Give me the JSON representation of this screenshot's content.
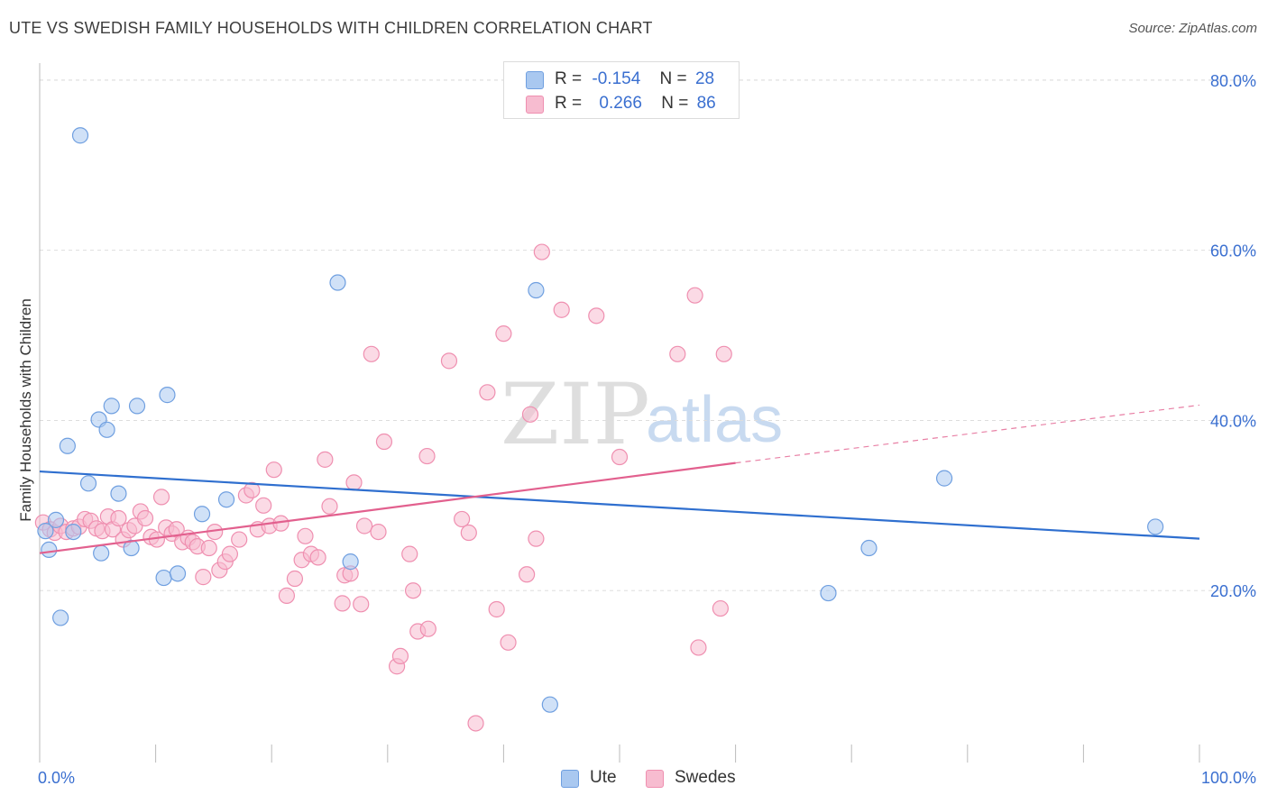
{
  "title": "UTE VS SWEDISH FAMILY HOUSEHOLDS WITH CHILDREN CORRELATION CHART",
  "source": "Source: ZipAtlas.com",
  "watermark": {
    "part1": "ZIP",
    "part2": "atlas"
  },
  "legend": {
    "rows": [
      {
        "r_label": "R =",
        "r_value": "-0.154",
        "n_label": "N =",
        "n_value": "28",
        "color": "#a9c8f0",
        "stroke": "#6f9fe0"
      },
      {
        "r_label": "R =",
        "r_value": "0.266",
        "n_label": "N =",
        "n_value": "86",
        "color": "#f7bcd0",
        "stroke": "#ef8fb0"
      }
    ]
  },
  "bottom_legend": [
    {
      "label": "Ute",
      "color": "#a9c8f0",
      "stroke": "#6f9fe0"
    },
    {
      "label": "Swedes",
      "color": "#f7bcd0",
      "stroke": "#ef8fb0"
    }
  ],
  "chart_data": {
    "type": "scatter",
    "title": "UTE VS SWEDISH FAMILY HOUSEHOLDS WITH CHILDREN CORRELATION CHART",
    "xlabel": "",
    "ylabel": "Family Households with Children",
    "xlim": [
      0,
      100
    ],
    "ylim": [
      0,
      82
    ],
    "x_tick_labels": [
      "0.0%",
      "100.0%"
    ],
    "y_ticks": [
      20,
      40,
      60,
      80
    ],
    "y_tick_labels": [
      "20.0%",
      "40.0%",
      "60.0%",
      "80.0%"
    ],
    "grid": true,
    "series": [
      {
        "name": "Ute",
        "color": "#a9c8f0",
        "stroke": "#6f9fe0",
        "line_color": "#2f6fcf",
        "trend": {
          "x": [
            0,
            100
          ],
          "y": [
            34.0,
            26.1
          ],
          "dashed_from": null
        },
        "points": [
          [
            0.5,
            27.0
          ],
          [
            0.8,
            24.8
          ],
          [
            1.4,
            28.3
          ],
          [
            1.8,
            16.8
          ],
          [
            2.4,
            37.0
          ],
          [
            2.9,
            26.9
          ],
          [
            3.5,
            73.5
          ],
          [
            4.2,
            32.6
          ],
          [
            5.1,
            40.1
          ],
          [
            5.3,
            24.4
          ],
          [
            5.8,
            38.9
          ],
          [
            6.2,
            41.7
          ],
          [
            6.8,
            31.4
          ],
          [
            7.9,
            25.0
          ],
          [
            8.4,
            41.7
          ],
          [
            10.7,
            21.5
          ],
          [
            11.0,
            43.0
          ],
          [
            11.9,
            22.0
          ],
          [
            14.0,
            29.0
          ],
          [
            16.1,
            30.7
          ],
          [
            25.7,
            56.2
          ],
          [
            26.8,
            23.4
          ],
          [
            42.8,
            55.3
          ],
          [
            44.0,
            6.6
          ],
          [
            68.0,
            19.7
          ],
          [
            71.5,
            25.0
          ],
          [
            78.0,
            33.2
          ],
          [
            96.2,
            27.5
          ]
        ]
      },
      {
        "name": "Swedes",
        "color": "#f7bcd0",
        "stroke": "#ef8fb0",
        "line_color": "#e2608e",
        "trend": {
          "x": [
            0,
            60,
            100
          ],
          "y": [
            24.4,
            35.0,
            41.8
          ],
          "dashed_from": 60
        },
        "points": [
          [
            0.3,
            28.0
          ],
          [
            0.9,
            27.2
          ],
          [
            1.3,
            26.8
          ],
          [
            1.8,
            27.6
          ],
          [
            2.3,
            26.9
          ],
          [
            2.9,
            27.3
          ],
          [
            3.4,
            27.5
          ],
          [
            3.9,
            28.4
          ],
          [
            4.4,
            28.2
          ],
          [
            4.9,
            27.3
          ],
          [
            5.4,
            27.0
          ],
          [
            5.9,
            28.7
          ],
          [
            6.3,
            27.2
          ],
          [
            6.8,
            28.5
          ],
          [
            7.2,
            26.0
          ],
          [
            7.7,
            27.1
          ],
          [
            8.2,
            27.6
          ],
          [
            8.7,
            29.3
          ],
          [
            9.1,
            28.5
          ],
          [
            9.6,
            26.3
          ],
          [
            10.1,
            26.0
          ],
          [
            10.5,
            31.0
          ],
          [
            10.9,
            27.4
          ],
          [
            11.4,
            26.7
          ],
          [
            11.8,
            27.2
          ],
          [
            12.3,
            25.7
          ],
          [
            12.8,
            26.2
          ],
          [
            13.2,
            25.7
          ],
          [
            13.6,
            25.2
          ],
          [
            14.1,
            21.6
          ],
          [
            14.6,
            25.0
          ],
          [
            15.1,
            26.9
          ],
          [
            15.5,
            22.4
          ],
          [
            16.0,
            23.4
          ],
          [
            16.4,
            24.3
          ],
          [
            17.2,
            26.0
          ],
          [
            17.8,
            31.2
          ],
          [
            18.3,
            31.8
          ],
          [
            18.8,
            27.2
          ],
          [
            19.3,
            30.0
          ],
          [
            19.8,
            27.6
          ],
          [
            20.2,
            34.2
          ],
          [
            20.8,
            27.9
          ],
          [
            21.3,
            19.4
          ],
          [
            22.0,
            21.4
          ],
          [
            22.6,
            23.6
          ],
          [
            22.9,
            26.4
          ],
          [
            23.4,
            24.3
          ],
          [
            24.0,
            23.9
          ],
          [
            24.6,
            35.4
          ],
          [
            25.0,
            29.9
          ],
          [
            26.1,
            18.5
          ],
          [
            26.3,
            21.8
          ],
          [
            26.8,
            22.0
          ],
          [
            27.1,
            32.7
          ],
          [
            27.7,
            18.4
          ],
          [
            28.0,
            27.6
          ],
          [
            28.6,
            47.8
          ],
          [
            29.2,
            26.9
          ],
          [
            29.7,
            37.5
          ],
          [
            30.8,
            11.1
          ],
          [
            31.1,
            12.3
          ],
          [
            31.9,
            24.3
          ],
          [
            32.2,
            20.0
          ],
          [
            32.6,
            15.2
          ],
          [
            33.5,
            15.5
          ],
          [
            33.4,
            35.8
          ],
          [
            35.3,
            47.0
          ],
          [
            36.4,
            28.4
          ],
          [
            37.0,
            26.8
          ],
          [
            37.6,
            4.4
          ],
          [
            38.6,
            43.3
          ],
          [
            39.4,
            17.8
          ],
          [
            40.0,
            50.2
          ],
          [
            40.4,
            13.9
          ],
          [
            42.0,
            21.9
          ],
          [
            42.3,
            40.7
          ],
          [
            42.8,
            26.1
          ],
          [
            43.3,
            59.8
          ],
          [
            45.0,
            53.0
          ],
          [
            48.0,
            52.3
          ],
          [
            50.0,
            35.7
          ],
          [
            55.0,
            47.8
          ],
          [
            56.5,
            54.7
          ],
          [
            56.8,
            13.3
          ],
          [
            58.7,
            17.9
          ],
          [
            59.0,
            47.8
          ]
        ]
      }
    ]
  }
}
